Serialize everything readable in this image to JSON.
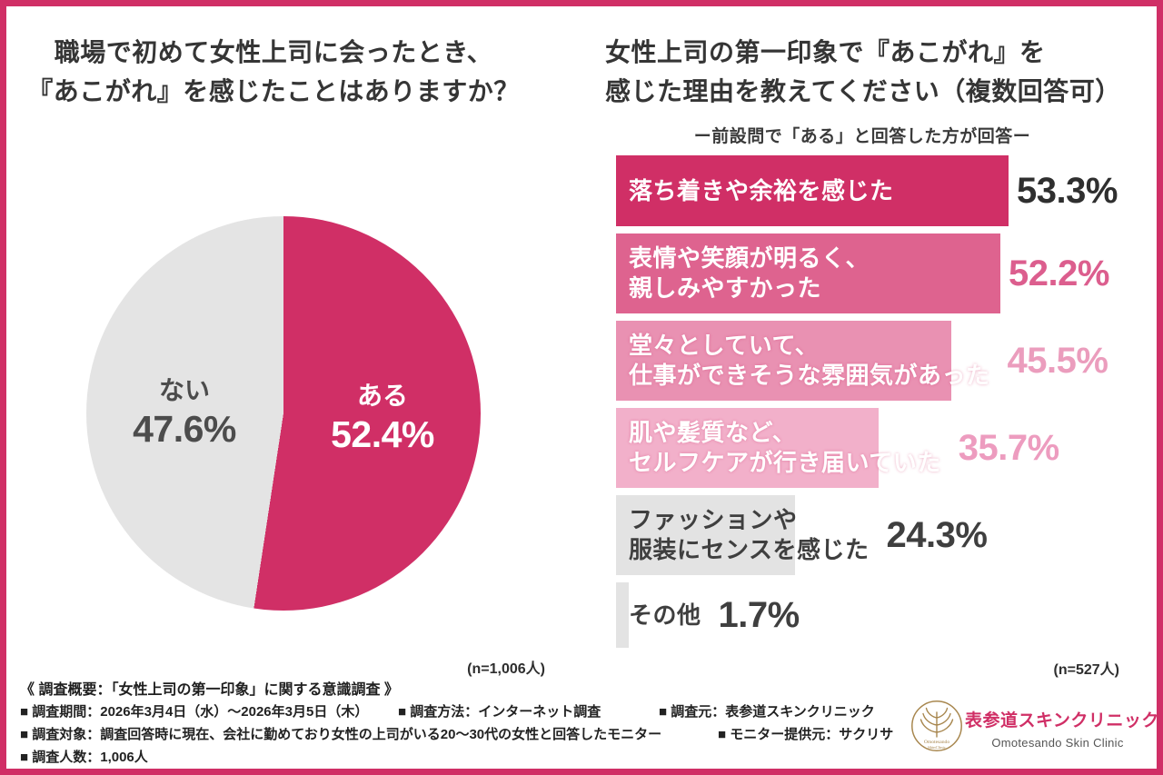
{
  "theme": {
    "accent": "#d02f66",
    "pink_2": "#de638f",
    "pink_3": "#e991b2",
    "pink_4": "#f2b0ca",
    "gray_bar": "#e3e3e3",
    "text_dark": "#353535",
    "logo_gold": "#a8874f"
  },
  "pie_section": {
    "title_lines": [
      "職場で初めて女性上司に会ったとき、",
      "『あこがれ』を感じたことはありますか？"
    ],
    "slices": [
      {
        "label": "ある",
        "value": "52.4%"
      },
      {
        "label": "ない",
        "value": "47.6%"
      }
    ],
    "n_label": "(n=1,006人)"
  },
  "bar_section": {
    "title_lines": [
      "女性上司の第一印象で『あこがれ』を",
      "感じた理由を教えてください（複数回答可）"
    ],
    "subtitle": "ー前設問で「ある」と回答した方が回答ー",
    "bars": [
      {
        "pct": 53.3,
        "lines": [
          "落ち着きや余裕を感じた"
        ],
        "value": "53.3%",
        "bar_color": "#d02f66",
        "label_color": "#ffffff",
        "value_color": "#2f2f2f",
        "shadow": false
      },
      {
        "pct": 52.2,
        "lines": [
          "表情や笑顔が明るく、",
          "親しみやすかった"
        ],
        "value": "52.2%",
        "bar_color": "#de638f",
        "label_color": "#ffffff",
        "value_color": "#dc5e8e",
        "shadow": false
      },
      {
        "pct": 45.5,
        "lines": [
          "堂々としていて、",
          "仕事ができそうな雰囲気があった"
        ],
        "value": "45.5%",
        "bar_color": "#e991b2",
        "label_color": "#ffffff",
        "value_color": "#eb9dbd",
        "shadow": true
      },
      {
        "pct": 35.7,
        "lines": [
          "肌や髪質など、",
          "セルフケアが行き届いていた"
        ],
        "value": "35.7%",
        "bar_color": "#f2b0ca",
        "label_color": "#ffffff",
        "value_color": "#ed9cbf",
        "shadow": true
      },
      {
        "pct": 24.3,
        "lines": [
          "ファッションや",
          "服装にセンスを感じた"
        ],
        "value": "24.3%",
        "bar_color": "#e3e3e3",
        "label_color": "#3f3f3f",
        "value_color": "#3f3f3f",
        "shadow": false
      },
      {
        "pct": 1.7,
        "lines": [
          "その他"
        ],
        "value": "1.7%",
        "bar_color": "#e3e3e3",
        "label_color": "#3f3f3f",
        "value_color": "#3f3f3f",
        "shadow": false
      }
    ],
    "n_label": "(n=527人)"
  },
  "footer": {
    "heading": "《 調査概要：「女性上司の第一印象」に関する意識調査 》",
    "period": "■ 調査期間：2026年3月4日（水）〜2026年3月5日（木）",
    "method": "■ 調査方法：インターネット調査",
    "source": "■ 調査元：表参道スキンクリニック",
    "target": "■ 調査対象：調査回答時に現在、会社に勤めており女性の上司がいる20〜30代の女性と回答したモニター",
    "monitor": "■ モニター提供元：サクリサ",
    "count": "■ 調査人数：1,006人"
  },
  "logo": {
    "name_jp": "表参道スキンクリニック",
    "name_en": "Omotesando Skin Clinic",
    "emblem_line1": "Omotesando",
    "emblem_line2": "SkinClinic"
  },
  "chart_data": [
    {
      "type": "pie",
      "title": "職場で初めて女性上司に会ったとき、『あこがれ』を感じたことはありますか？",
      "labels": [
        "ある",
        "ない"
      ],
      "values": [
        52.4,
        47.6
      ],
      "colors": [
        "#d02f66",
        "#e4e4e4"
      ],
      "label_colors": [
        "#ffffff",
        "#4c4c4c"
      ],
      "start_angle_deg": 0,
      "direction": "clockwise",
      "legend": "none",
      "n_label": "(n=1,006人)"
    },
    {
      "type": "bar",
      "orientation": "horizontal",
      "title": "女性上司の第一印象で『あこがれ』を感じた理由を教えてください（複数回答可）",
      "subtitle": "ー前設問で「ある」と回答した方が回答ー",
      "categories": [
        "落ち着きや余裕を感じた",
        "表情や笑顔が明るく、親しみやすかった",
        "堂々としていて、仕事ができそうな雰囲気があった",
        "肌や髪質など、セルフケアが行き届いていた",
        "ファッションや服装にセンスを感じた",
        "その他"
      ],
      "values": [
        53.3,
        52.2,
        45.5,
        35.7,
        24.3,
        1.7
      ],
      "value_labels": [
        "53.3%",
        "52.2%",
        "45.5%",
        "35.7%",
        "24.3%",
        "1.7%"
      ],
      "bar_colors": [
        "#d02f66",
        "#de638f",
        "#e991b2",
        "#f2b0ca",
        "#e3e3e3",
        "#e3e3e3"
      ],
      "xlim": [
        0,
        60
      ],
      "grid": false,
      "n_label": "(n=527人)"
    }
  ]
}
